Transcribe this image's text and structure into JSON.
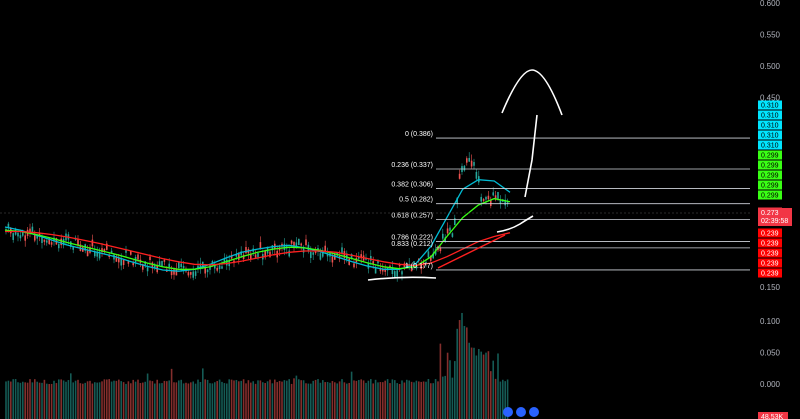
{
  "chart_data": {
    "type": "candlestick",
    "title": "",
    "price_axis": {
      "scale": "linear",
      "range": [
        0.15,
        0.6
      ],
      "ticks": [
        0.6,
        0.55,
        0.5,
        0.45,
        0.15
      ],
      "tick_labels": [
        "0.600",
        "0.550",
        "0.500",
        "0.450",
        "0.150"
      ]
    },
    "volume_axis": {
      "ticks": [
        0.1,
        0.05,
        0.0
      ],
      "tick_labels": [
        "0.100",
        "0.050",
        "0.000"
      ]
    },
    "fib_levels": [
      {
        "ratio": "0",
        "price": 0.386,
        "label": "0 (0.386)"
      },
      {
        "ratio": "0.236",
        "price": 0.337,
        "label": "0.236 (0.337)"
      },
      {
        "ratio": "0.382",
        "price": 0.306,
        "label": "0.382 (0.306)"
      },
      {
        "ratio": "0.5",
        "price": 0.282,
        "label": "0.5 (0.282)"
      },
      {
        "ratio": "0.618",
        "price": 0.257,
        "label": "0.618 (0.257)"
      },
      {
        "ratio": "0.786",
        "price": 0.222,
        "label": "0.786 (0.222)"
      },
      {
        "ratio": "0.833",
        "price": 0.212,
        "label": "0.833 (0.212)"
      },
      {
        "ratio": "1",
        "price": 0.177,
        "label": "1 (0.177)"
      }
    ],
    "price_badges": [
      {
        "value": "0.310",
        "color": "#00e5ff"
      },
      {
        "value": "0.310",
        "color": "#00e5ff"
      },
      {
        "value": "0.310",
        "color": "#00e5ff"
      },
      {
        "value": "0.310",
        "color": "#00e5ff"
      },
      {
        "value": "0.310",
        "color": "#00e5ff"
      },
      {
        "value": "0.299",
        "color": "#39ff14"
      },
      {
        "value": "0.299",
        "color": "#39ff14"
      },
      {
        "value": "0.299",
        "color": "#39ff14"
      },
      {
        "value": "0.299",
        "color": "#39ff14"
      },
      {
        "value": "0.299",
        "color": "#39ff14"
      },
      {
        "value": "0.273",
        "color": "#f23645"
      },
      {
        "value": "0.239",
        "color": "#ff0000"
      },
      {
        "value": "0.239",
        "color": "#ff0000"
      },
      {
        "value": "0.239",
        "color": "#ff0000"
      },
      {
        "value": "0.239",
        "color": "#ff0000"
      },
      {
        "value": "0.239",
        "color": "#ff0000"
      }
    ],
    "current_price": {
      "value": "0.273",
      "countdown": "02:39:58",
      "color": "#f23645"
    },
    "volume_badge": {
      "value": "48.53K",
      "color": "#f23645"
    },
    "moving_averages": [
      {
        "color": "#00bcd4",
        "values": [
          0.245,
          0.24,
          0.232,
          0.224,
          0.216,
          0.21,
          0.204,
          0.198,
          0.19,
          0.183,
          0.177,
          0.175,
          0.178,
          0.186,
          0.196,
          0.205,
          0.21,
          0.214,
          0.216,
          0.212,
          0.206,
          0.198,
          0.19,
          0.183,
          0.178,
          0.178,
          0.186,
          0.215,
          0.26,
          0.305,
          0.32,
          0.318,
          0.3
        ]
      },
      {
        "color": "#39ff14",
        "values": [
          0.24,
          0.238,
          0.233,
          0.227,
          0.22,
          0.214,
          0.208,
          0.202,
          0.195,
          0.188,
          0.182,
          0.178,
          0.178,
          0.182,
          0.19,
          0.198,
          0.205,
          0.21,
          0.213,
          0.212,
          0.208,
          0.202,
          0.195,
          0.188,
          0.182,
          0.179,
          0.182,
          0.198,
          0.23,
          0.26,
          0.28,
          0.29,
          0.285
        ]
      },
      {
        "color": "#ff2020",
        "values": [
          0.238,
          0.238,
          0.236,
          0.233,
          0.229,
          0.224,
          0.219,
          0.213,
          0.207,
          0.201,
          0.195,
          0.19,
          0.186,
          0.185,
          0.187,
          0.191,
          0.196,
          0.201,
          0.205,
          0.207,
          0.207,
          0.205,
          0.2,
          0.195,
          0.19,
          0.186,
          0.184,
          0.188,
          0.198,
          0.21,
          0.222,
          0.23,
          0.236
        ]
      }
    ],
    "grid": false,
    "legend": "none"
  },
  "colors": {
    "background": "#000000",
    "bull": "#26a69a",
    "bear": "#ef5350",
    "fib_line": "#d1d4dc",
    "drawing": "#ffffff"
  }
}
